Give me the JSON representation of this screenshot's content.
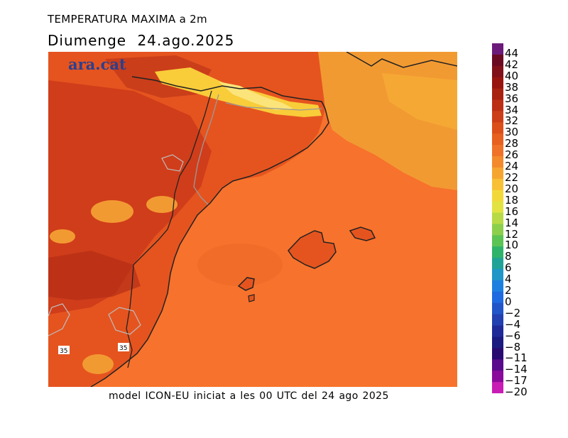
{
  "header": {
    "title": "TEMPERATURA MAXIMA a 2m",
    "date": "Diumenge  24.ago.2025"
  },
  "logo": "ara.cat",
  "footer": "model ICON-EU iniciat a les 00 UTC del 24 ago 2025",
  "map": {
    "contour_labels": [
      "35",
      "35"
    ],
    "colors": {
      "sea": "#f7722c",
      "land_warm": "#e5541f",
      "land_hot": "#c8361a",
      "land_cool": "#f29a32",
      "mountains": "#f9cc3a",
      "coast": "#222222",
      "border": "#9a9a9a"
    }
  },
  "legend": {
    "labels": [
      "44",
      "42",
      "40",
      "38",
      "36",
      "34",
      "32",
      "30",
      "28",
      "26",
      "24",
      "22",
      "20",
      "18",
      "16",
      "14",
      "12",
      "10",
      "8",
      "6",
      "4",
      "2",
      "0",
      "−2",
      "−4",
      "−6",
      "−8",
      "−11",
      "−14",
      "−17",
      "−20"
    ],
    "colors": [
      "#6b1a7a",
      "#6a0a22",
      "#80101a",
      "#98140f",
      "#a8220f",
      "#bc2f14",
      "#cc3e17",
      "#dc4f1b",
      "#e8601f",
      "#f07228",
      "#f38a2c",
      "#f6a630",
      "#f8c036",
      "#f2d93a",
      "#e2e342",
      "#b8da46",
      "#8ccf4c",
      "#5cc454",
      "#2fb36a",
      "#20a396",
      "#1f95c8",
      "#1d80e0",
      "#1f6ae0",
      "#2155c8",
      "#2340b0",
      "#1f2a98",
      "#1b1a80",
      "#280a70",
      "#5a0a8c",
      "#8a0a9c",
      "#c81cb4"
    ]
  }
}
